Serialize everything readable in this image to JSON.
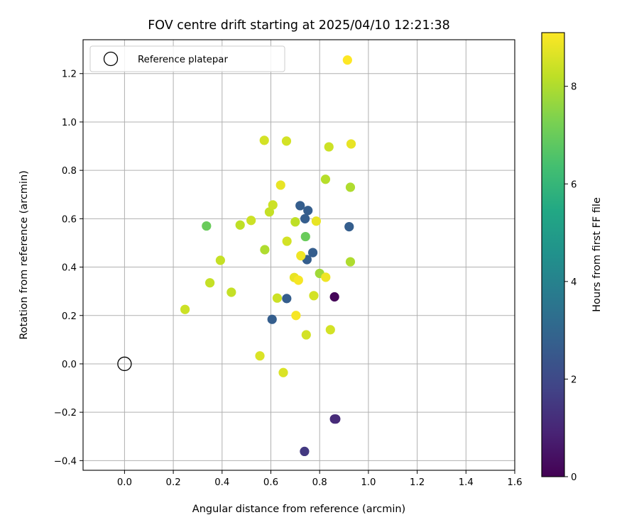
{
  "chart_data": {
    "type": "scatter",
    "title": "FOV centre drift starting at 2025/04/10 12:21:38",
    "xlabel": "Angular distance from reference (arcmin)",
    "ylabel": "Rotation from reference (arcmin)",
    "xlim": [
      -0.17,
      1.6
    ],
    "ylim": [
      -0.44,
      1.34
    ],
    "xticks": [
      0.0,
      0.2,
      0.4,
      0.6,
      0.8,
      1.0,
      1.2,
      1.4,
      1.6
    ],
    "xtick_labels": [
      "0.0",
      "0.2",
      "0.4",
      "0.6",
      "0.8",
      "1.0",
      "1.2",
      "1.4",
      "1.6"
    ],
    "yticks": [
      -0.4,
      -0.2,
      0.0,
      0.2,
      0.4,
      0.6,
      0.8,
      1.0,
      1.2
    ],
    "ytick_labels": [
      "−0.4",
      "−0.2",
      "0.0",
      "0.2",
      "0.4",
      "0.6",
      "0.8",
      "1.0",
      "1.2"
    ],
    "grid": true,
    "legend": {
      "position": "top-left",
      "entries": [
        {
          "label": "Reference platepar",
          "marker": "open-circle"
        }
      ]
    },
    "reference_point": {
      "x": 0.0,
      "y": 0.0
    },
    "colorbar": {
      "label": "Hours from first FF file",
      "colormap": "viridis",
      "range": [
        0,
        9.1
      ],
      "ticks": [
        0,
        2,
        4,
        6,
        8
      ],
      "tick_labels": [
        "0",
        "2",
        "4",
        "6",
        "8"
      ]
    },
    "points": [
      {
        "x": 0.861,
        "y": 0.277,
        "hours": 0.1
      },
      {
        "x": 0.866,
        "y": -0.228,
        "hours": 1.1
      },
      {
        "x": 0.861,
        "y": -0.228,
        "hours": 1.1
      },
      {
        "x": 0.738,
        "y": -0.362,
        "hours": 1.5
      },
      {
        "x": 0.72,
        "y": 0.654,
        "hours": 2.7
      },
      {
        "x": 0.752,
        "y": 0.634,
        "hours": 2.7
      },
      {
        "x": 0.74,
        "y": 0.6,
        "hours": 2.7
      },
      {
        "x": 0.921,
        "y": 0.567,
        "hours": 2.7
      },
      {
        "x": 0.772,
        "y": 0.46,
        "hours": 2.7
      },
      {
        "x": 0.748,
        "y": 0.431,
        "hours": 2.7
      },
      {
        "x": 0.665,
        "y": 0.27,
        "hours": 2.7
      },
      {
        "x": 0.605,
        "y": 0.184,
        "hours": 2.7
      },
      {
        "x": 0.336,
        "y": 0.57,
        "hours": 7.0
      },
      {
        "x": 0.742,
        "y": 0.526,
        "hours": 7.0
      },
      {
        "x": 0.8,
        "y": 0.374,
        "hours": 7.8
      },
      {
        "x": 0.824,
        "y": 0.763,
        "hours": 8.1
      },
      {
        "x": 0.926,
        "y": 0.73,
        "hours": 8.0
      },
      {
        "x": 0.926,
        "y": 0.422,
        "hours": 8.0
      },
      {
        "x": 0.7,
        "y": 0.587,
        "hours": 8.2
      },
      {
        "x": 0.575,
        "y": 0.472,
        "hours": 8.0
      },
      {
        "x": 0.474,
        "y": 0.574,
        "hours": 8.2
      },
      {
        "x": 0.393,
        "y": 0.428,
        "hours": 8.3
      },
      {
        "x": 0.35,
        "y": 0.335,
        "hours": 8.3
      },
      {
        "x": 0.438,
        "y": 0.296,
        "hours": 8.3
      },
      {
        "x": 0.248,
        "y": 0.225,
        "hours": 8.4
      },
      {
        "x": 0.594,
        "y": 0.628,
        "hours": 8.3
      },
      {
        "x": 0.519,
        "y": 0.593,
        "hours": 8.4
      },
      {
        "x": 0.608,
        "y": 0.657,
        "hours": 8.4
      },
      {
        "x": 0.573,
        "y": 0.924,
        "hours": 8.5
      },
      {
        "x": 0.664,
        "y": 0.921,
        "hours": 8.5
      },
      {
        "x": 0.838,
        "y": 0.897,
        "hours": 8.4
      },
      {
        "x": 0.666,
        "y": 0.507,
        "hours": 8.5
      },
      {
        "x": 0.626,
        "y": 0.272,
        "hours": 8.4
      },
      {
        "x": 0.776,
        "y": 0.282,
        "hours": 8.5
      },
      {
        "x": 0.745,
        "y": 0.12,
        "hours": 8.5
      },
      {
        "x": 0.844,
        "y": 0.141,
        "hours": 8.5
      },
      {
        "x": 0.555,
        "y": 0.033,
        "hours": 8.6
      },
      {
        "x": 0.651,
        "y": -0.036,
        "hours": 8.6
      },
      {
        "x": 0.64,
        "y": 0.739,
        "hours": 8.8
      },
      {
        "x": 0.929,
        "y": 0.909,
        "hours": 8.8
      },
      {
        "x": 0.786,
        "y": 0.59,
        "hours": 8.8
      },
      {
        "x": 0.696,
        "y": 0.357,
        "hours": 8.8
      },
      {
        "x": 0.825,
        "y": 0.358,
        "hours": 8.9
      },
      {
        "x": 0.723,
        "y": 0.447,
        "hours": 8.9
      },
      {
        "x": 0.713,
        "y": 0.346,
        "hours": 9.0
      },
      {
        "x": 0.703,
        "y": 0.2,
        "hours": 9.0
      },
      {
        "x": 0.914,
        "y": 1.256,
        "hours": 9.1
      }
    ]
  }
}
